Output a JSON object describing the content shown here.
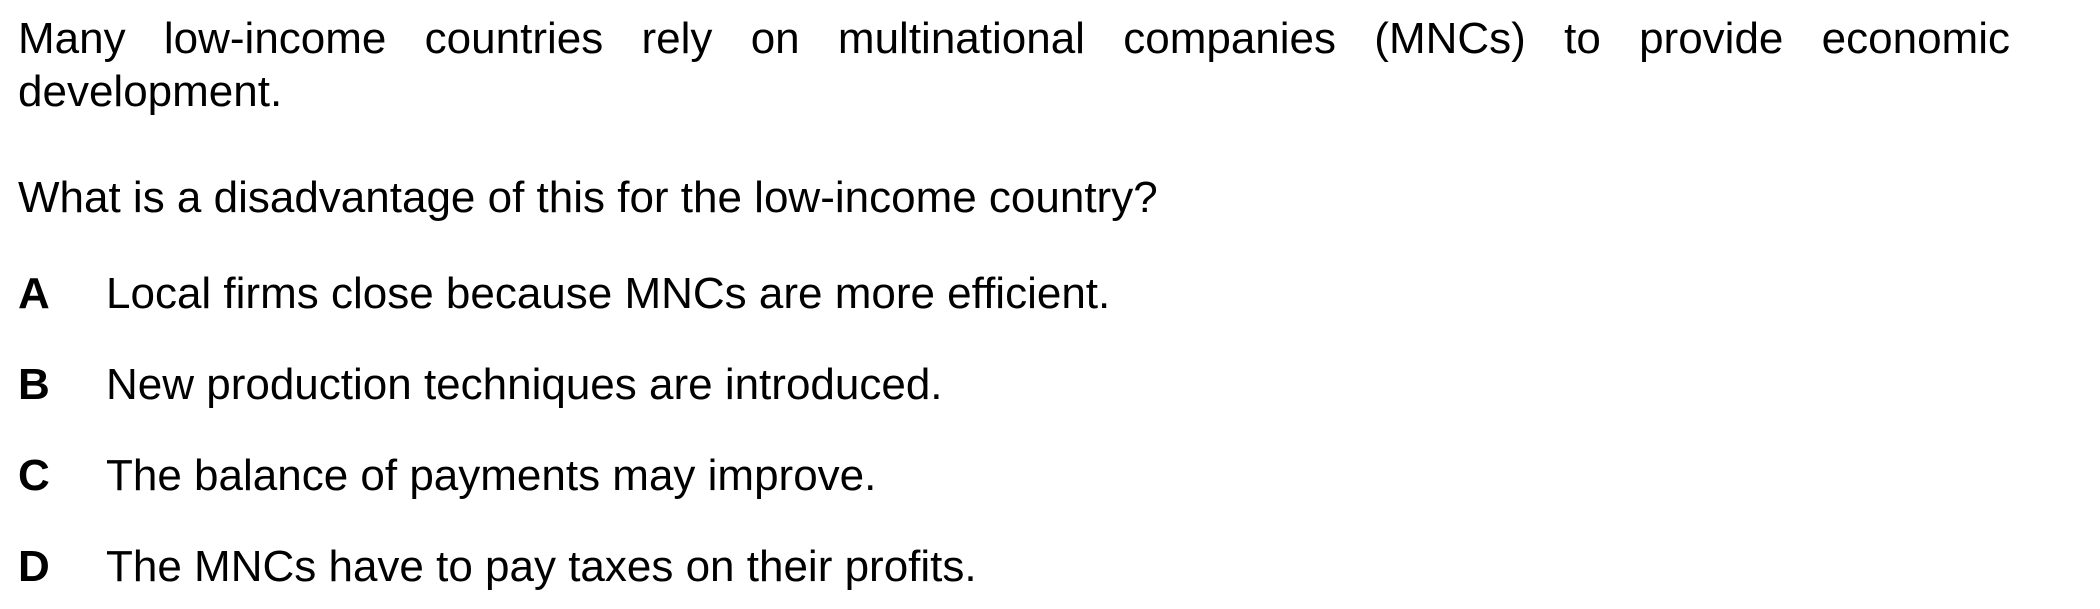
{
  "question": {
    "stem": "Many low-income countries rely on multinational companies (MNCs) to provide economic development.",
    "prompt": "What is a disadvantage of this for the low-income country?",
    "options": [
      {
        "letter": "A",
        "text": "Local firms close because MNCs are more efficient."
      },
      {
        "letter": "B",
        "text": "New production techniques are introduced."
      },
      {
        "letter": "C",
        "text": "The balance of payments may improve."
      },
      {
        "letter": "D",
        "text": "The MNCs have to pay taxes on their profits."
      }
    ]
  }
}
